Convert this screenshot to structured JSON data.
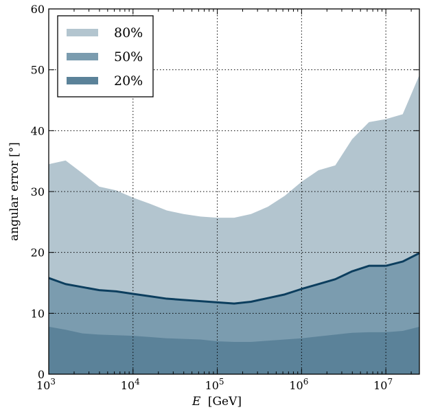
{
  "chart_data": {
    "type": "area",
    "xscale": "log",
    "xlabel_var": "E",
    "xlabel_unit": "[GeV]",
    "ylabel": "angular error [°]",
    "xlim": [
      1000,
      25000000
    ],
    "ylim": [
      0,
      60
    ],
    "grid": true,
    "grid_style": "dotted",
    "legend_position": "top-left",
    "x_ticks": [
      {
        "value": 1000,
        "base": "10",
        "exp": "3"
      },
      {
        "value": 10000,
        "base": "10",
        "exp": "4"
      },
      {
        "value": 100000,
        "base": "10",
        "exp": "5"
      },
      {
        "value": 1000000,
        "base": "10",
        "exp": "6"
      },
      {
        "value": 10000000,
        "base": "10",
        "exp": "7"
      }
    ],
    "y_ticks": [
      {
        "value": 0,
        "label": "0"
      },
      {
        "value": 10,
        "label": "10"
      },
      {
        "value": 20,
        "label": "20"
      },
      {
        "value": 30,
        "label": "30"
      },
      {
        "value": 40,
        "label": "40"
      },
      {
        "value": 50,
        "label": "50"
      },
      {
        "value": 60,
        "label": "60"
      }
    ],
    "x": [
      1000,
      1585,
      2512,
      3981,
      6310,
      10000,
      15849,
      25119,
      39811,
      63096,
      100000,
      158489,
      251189,
      398107,
      630957,
      1000000,
      1584893,
      2511886,
      3981072,
      6309573,
      10000000,
      15848932,
      25118864
    ],
    "series": [
      {
        "name": "80%",
        "color": "#b3c5cf",
        "values": [
          34.5,
          35.1,
          33.0,
          30.8,
          30.2,
          29.0,
          28.0,
          26.9,
          26.3,
          25.9,
          25.7,
          25.7,
          26.3,
          27.5,
          29.3,
          31.6,
          33.5,
          34.3,
          38.6,
          41.4,
          41.9,
          42.7,
          49.2
        ]
      },
      {
        "name": "50%",
        "color": "#7b9caf",
        "values": [
          15.8,
          14.8,
          14.3,
          13.8,
          13.6,
          13.2,
          12.8,
          12.4,
          12.2,
          12.0,
          11.8,
          11.6,
          11.9,
          12.5,
          13.1,
          14.0,
          14.8,
          15.6,
          16.9,
          17.8,
          17.8,
          18.5,
          19.9
        ]
      },
      {
        "name": "20%",
        "color": "#5b8299",
        "values": [
          7.8,
          7.3,
          6.7,
          6.5,
          6.4,
          6.3,
          6.1,
          5.9,
          5.8,
          5.7,
          5.4,
          5.3,
          5.3,
          5.5,
          5.7,
          5.9,
          6.2,
          6.5,
          6.8,
          6.9,
          6.9,
          7.1,
          7.8
        ]
      }
    ],
    "median_line_color": "#0c3e5e"
  }
}
